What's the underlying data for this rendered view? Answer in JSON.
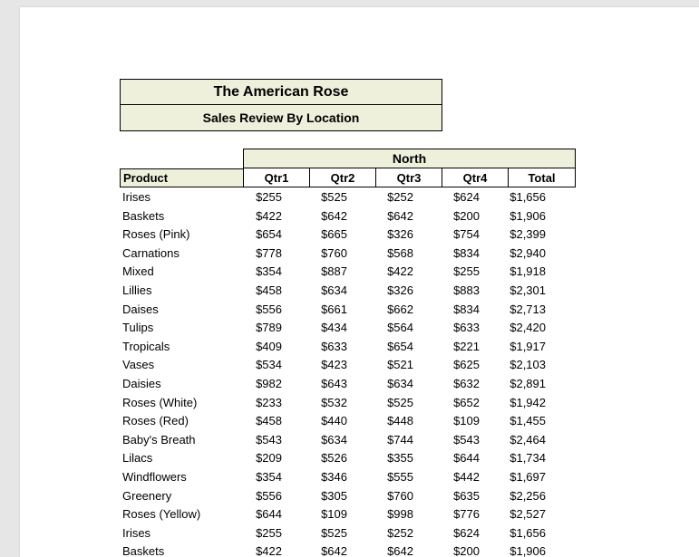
{
  "report": {
    "title": "The American Rose",
    "subtitle": "Sales Review By Location",
    "region": "North"
  },
  "columns": {
    "product": "Product",
    "q1": "Qtr1",
    "q2": "Qtr2",
    "q3": "Qtr3",
    "q4": "Qtr4",
    "total": "Total"
  },
  "rows": [
    {
      "product": "Irises",
      "q1": "$255",
      "q2": "$525",
      "q3": "$252",
      "q4": "$624",
      "total": "$1,656"
    },
    {
      "product": "Baskets",
      "q1": "$422",
      "q2": "$642",
      "q3": "$642",
      "q4": "$200",
      "total": "$1,906"
    },
    {
      "product": "Roses (Pink)",
      "q1": "$654",
      "q2": "$665",
      "q3": "$326",
      "q4": "$754",
      "total": "$2,399"
    },
    {
      "product": "Carnations",
      "q1": "$778",
      "q2": "$760",
      "q3": "$568",
      "q4": "$834",
      "total": "$2,940"
    },
    {
      "product": "Mixed",
      "q1": "$354",
      "q2": "$887",
      "q3": "$422",
      "q4": "$255",
      "total": "$1,918"
    },
    {
      "product": "Lillies",
      "q1": "$458",
      "q2": "$634",
      "q3": "$326",
      "q4": "$883",
      "total": "$2,301"
    },
    {
      "product": "Daises",
      "q1": "$556",
      "q2": "$661",
      "q3": "$662",
      "q4": "$834",
      "total": "$2,713"
    },
    {
      "product": "Tulips",
      "q1": "$789",
      "q2": "$434",
      "q3": "$564",
      "q4": "$633",
      "total": "$2,420"
    },
    {
      "product": "Tropicals",
      "q1": "$409",
      "q2": "$633",
      "q3": "$654",
      "q4": "$221",
      "total": "$1,917"
    },
    {
      "product": "Vases",
      "q1": "$534",
      "q2": "$423",
      "q3": "$521",
      "q4": "$625",
      "total": "$2,103"
    },
    {
      "product": "Daisies",
      "q1": "$982",
      "q2": "$643",
      "q3": "$634",
      "q4": "$632",
      "total": "$2,891"
    },
    {
      "product": "Roses (White)",
      "q1": "$233",
      "q2": "$532",
      "q3": "$525",
      "q4": "$652",
      "total": "$1,942"
    },
    {
      "product": "Roses (Red)",
      "q1": "$458",
      "q2": "$440",
      "q3": "$448",
      "q4": "$109",
      "total": "$1,455"
    },
    {
      "product": "Baby's Breath",
      "q1": "$543",
      "q2": "$634",
      "q3": "$744",
      "q4": "$543",
      "total": "$2,464"
    },
    {
      "product": "Lilacs",
      "q1": "$209",
      "q2": "$526",
      "q3": "$355",
      "q4": "$644",
      "total": "$1,734"
    },
    {
      "product": "Windflowers",
      "q1": "$354",
      "q2": "$346",
      "q3": "$555",
      "q4": "$442",
      "total": "$1,697"
    },
    {
      "product": "Greenery",
      "q1": "$556",
      "q2": "$305",
      "q3": "$760",
      "q4": "$635",
      "total": "$2,256"
    },
    {
      "product": "Roses (Yellow)",
      "q1": "$644",
      "q2": "$109",
      "q3": "$998",
      "q4": "$776",
      "total": "$2,527"
    },
    {
      "product": "Irises",
      "q1": "$255",
      "q2": "$525",
      "q3": "$252",
      "q4": "$624",
      "total": "$1,656"
    },
    {
      "product": "Baskets",
      "q1": "$422",
      "q2": "$642",
      "q3": "$642",
      "q4": "$200",
      "total": "$1,906"
    }
  ],
  "colors": {
    "header_fill": "#eef0dc",
    "page_bg": "#ffffff",
    "viewer_bg": "#e6e6e6"
  }
}
